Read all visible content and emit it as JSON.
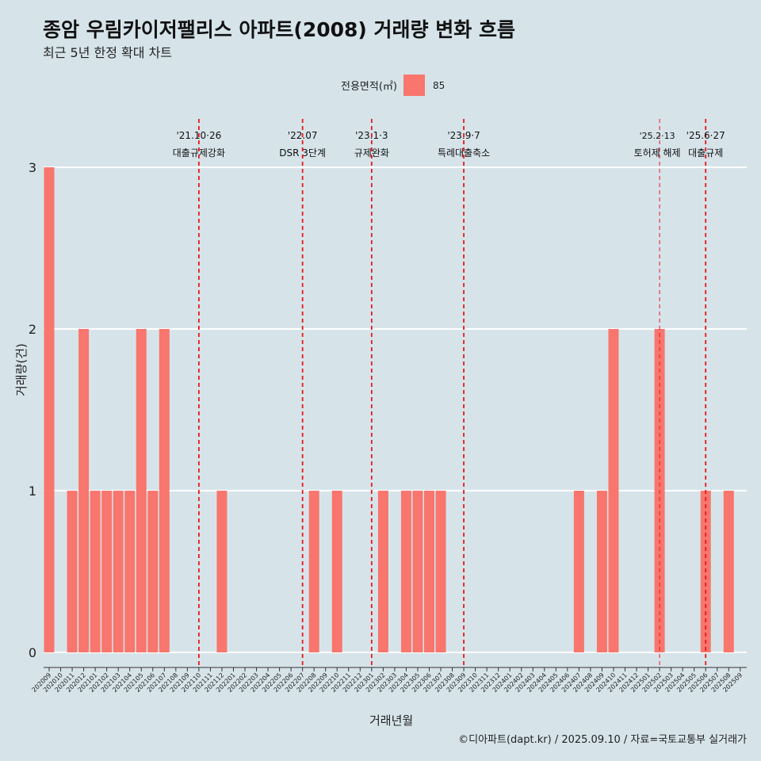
{
  "title": "종암 우림카이저팰리스 아파트(2008) 거래량 변화 흐름",
  "subtitle": "최근 5년 한정 확대 차트",
  "legend": {
    "title": "전용면적(㎡)",
    "label": "85"
  },
  "caption": "©디아파트(dapt.kr) / 2025.09.10 / 자료=국토교통부 실거래가",
  "chart_data": {
    "type": "bar",
    "title": "종암 우림카이저팰리스 아파트(2008) 거래량 변화 흐름",
    "xlabel": "거래년월",
    "ylabel": "거래량(건)",
    "ylim": [
      0,
      3
    ],
    "yticks": [
      0,
      1,
      2,
      3
    ],
    "bar_color": "#f8766d",
    "categories": [
      "202009",
      "202010",
      "202011",
      "202012",
      "202101",
      "202102",
      "202103",
      "202104",
      "202105",
      "202106",
      "202107",
      "202108",
      "202109",
      "202110",
      "202111",
      "202112",
      "202201",
      "202202",
      "202203",
      "202204",
      "202205",
      "202206",
      "202207",
      "202208",
      "202209",
      "202210",
      "202211",
      "202212",
      "202301",
      "202302",
      "202303",
      "202304",
      "202305",
      "202306",
      "202307",
      "202308",
      "202309",
      "202310",
      "202311",
      "202312",
      "202401",
      "202402",
      "202403",
      "202404",
      "202405",
      "202406",
      "202407",
      "202408",
      "202409",
      "202410",
      "202411",
      "202412",
      "202501",
      "202502",
      "202503",
      "202504",
      "202505",
      "202506",
      "202507",
      "202508",
      "202509"
    ],
    "series": [
      {
        "name": "85",
        "values": [
          3,
          0,
          1,
          2,
          1,
          1,
          1,
          1,
          2,
          1,
          2,
          0,
          0,
          0,
          0,
          1,
          0,
          0,
          0,
          0,
          0,
          0,
          0,
          1,
          0,
          1,
          0,
          0,
          0,
          1,
          0,
          1,
          1,
          1,
          1,
          0,
          0,
          0,
          0,
          0,
          0,
          0,
          0,
          0,
          0,
          0,
          1,
          0,
          1,
          2,
          0,
          0,
          0,
          2,
          0,
          0,
          0,
          1,
          0,
          1,
          0
        ]
      }
    ],
    "annotations": [
      {
        "x": "202110",
        "date": "'21.10·26",
        "label": "대출규제강화",
        "style": "thick"
      },
      {
        "x": "202207",
        "date": "'22.07",
        "label": "DSR 3단계",
        "style": "thick"
      },
      {
        "x": "202301",
        "date": "'23.1·3",
        "label": "규제완화",
        "style": "thick"
      },
      {
        "x": "202309",
        "date": "'23.9·7",
        "label": "특례대출축소",
        "style": "thick"
      },
      {
        "x": "202502",
        "date": "'25.2·13",
        "label": "토허제 해제",
        "style": "thin"
      },
      {
        "x": "202506",
        "date": "'25.6·27",
        "label": "대출규제",
        "style": "thick"
      }
    ]
  }
}
